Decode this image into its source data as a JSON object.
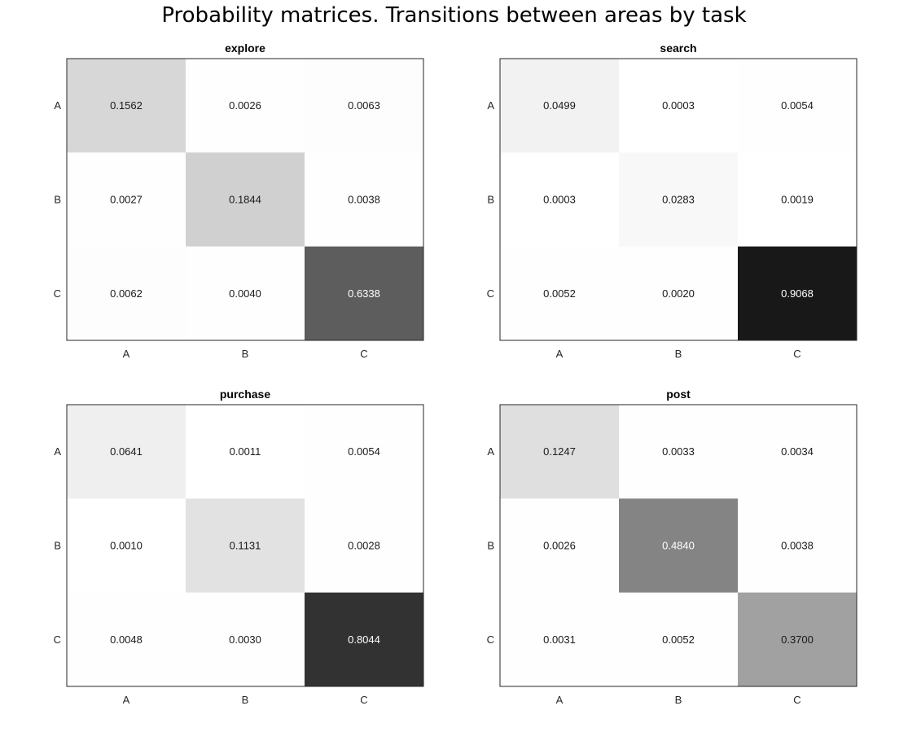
{
  "suptitle": "Probability matrices. Transitions between areas by task",
  "chart_data": [
    {
      "type": "heatmap",
      "title": "explore",
      "x_labels": [
        "A",
        "B",
        "C"
      ],
      "y_labels": [
        "A",
        "B",
        "C"
      ],
      "values": [
        [
          0.1562,
          0.0026,
          0.0063
        ],
        [
          0.0027,
          0.1844,
          0.0038
        ],
        [
          0.0062,
          0.004,
          0.6338
        ]
      ],
      "colormap": "gray-reversed",
      "value_range": [
        0,
        1
      ]
    },
    {
      "type": "heatmap",
      "title": "search",
      "x_labels": [
        "A",
        "B",
        "C"
      ],
      "y_labels": [
        "A",
        "B",
        "C"
      ],
      "values": [
        [
          0.0499,
          0.0003,
          0.0054
        ],
        [
          0.0003,
          0.0283,
          0.0019
        ],
        [
          0.0052,
          0.002,
          0.9068
        ]
      ],
      "colormap": "gray-reversed",
      "value_range": [
        0,
        1
      ]
    },
    {
      "type": "heatmap",
      "title": "purchase",
      "x_labels": [
        "A",
        "B",
        "C"
      ],
      "y_labels": [
        "A",
        "B",
        "C"
      ],
      "values": [
        [
          0.0641,
          0.0011,
          0.0054
        ],
        [
          0.001,
          0.1131,
          0.0028
        ],
        [
          0.0048,
          0.003,
          0.8044
        ]
      ],
      "colormap": "gray-reversed",
      "value_range": [
        0,
        1
      ]
    },
    {
      "type": "heatmap",
      "title": "post",
      "x_labels": [
        "A",
        "B",
        "C"
      ],
      "y_labels": [
        "A",
        "B",
        "C"
      ],
      "values": [
        [
          0.1247,
          0.0033,
          0.0034
        ],
        [
          0.0026,
          0.484,
          0.0038
        ],
        [
          0.0031,
          0.0052,
          0.37
        ]
      ],
      "colormap": "gray-reversed",
      "value_range": [
        0,
        1
      ]
    }
  ]
}
